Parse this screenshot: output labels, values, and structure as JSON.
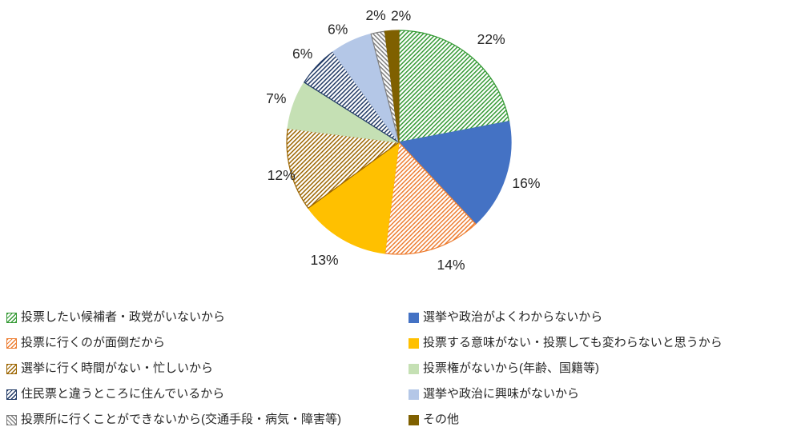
{
  "figure": {
    "background": "#ffffff",
    "description": "pie chart with percentage labels and two-column bottom legend"
  },
  "chart_data": {
    "type": "pie",
    "title": "",
    "direction": "clockwise",
    "start_angle_deg": 0,
    "legend_position": "bottom",
    "legend_columns": 2,
    "slices": [
      {
        "label": "投票したい候補者・政党がいないから",
        "value_pct": 22,
        "display": "22%",
        "color": "#339933",
        "fill_style": "diagonal-hatch-up"
      },
      {
        "label": "選挙や政治がよくわからないから",
        "value_pct": 16,
        "display": "16%",
        "color": "#4472C4",
        "fill_style": "solid"
      },
      {
        "label": "投票に行くのが面倒だから",
        "value_pct": 14,
        "display": "14%",
        "color": "#ED7D31",
        "fill_style": "diagonal-hatch-up"
      },
      {
        "label": "投票する意味がない・投票しても変わらないと思うから",
        "value_pct": 13,
        "display": "13%",
        "color": "#FFC000",
        "fill_style": "solid"
      },
      {
        "label": "選挙に行く時間がない・忙しいから",
        "value_pct": 12,
        "display": "12%",
        "color": "#9C6500",
        "fill_style": "diagonal-hatch-up"
      },
      {
        "label": "投票権がないから(年齢、国籍等)",
        "value_pct": 7,
        "display": "7%",
        "color": "#C5E0B4",
        "fill_style": "solid"
      },
      {
        "label": "住民票と違うところに住んでいるから",
        "value_pct": 6,
        "display": "6%",
        "color": "#1F3864",
        "fill_style": "diagonal-hatch-up"
      },
      {
        "label": "選挙や政治に興味がないから",
        "value_pct": 6,
        "display": "6%",
        "color": "#B4C7E7",
        "fill_style": "solid"
      },
      {
        "label": "投票所に行くことができないから(交通手段・病気・障害等)",
        "value_pct": 2,
        "display": "2%",
        "color": "#7F7F7F",
        "fill_style": "diagonal-hatch-down"
      },
      {
        "label": "その他",
        "value_pct": 2,
        "display": "2%",
        "color": "#7F6000",
        "fill_style": "solid"
      }
    ]
  }
}
